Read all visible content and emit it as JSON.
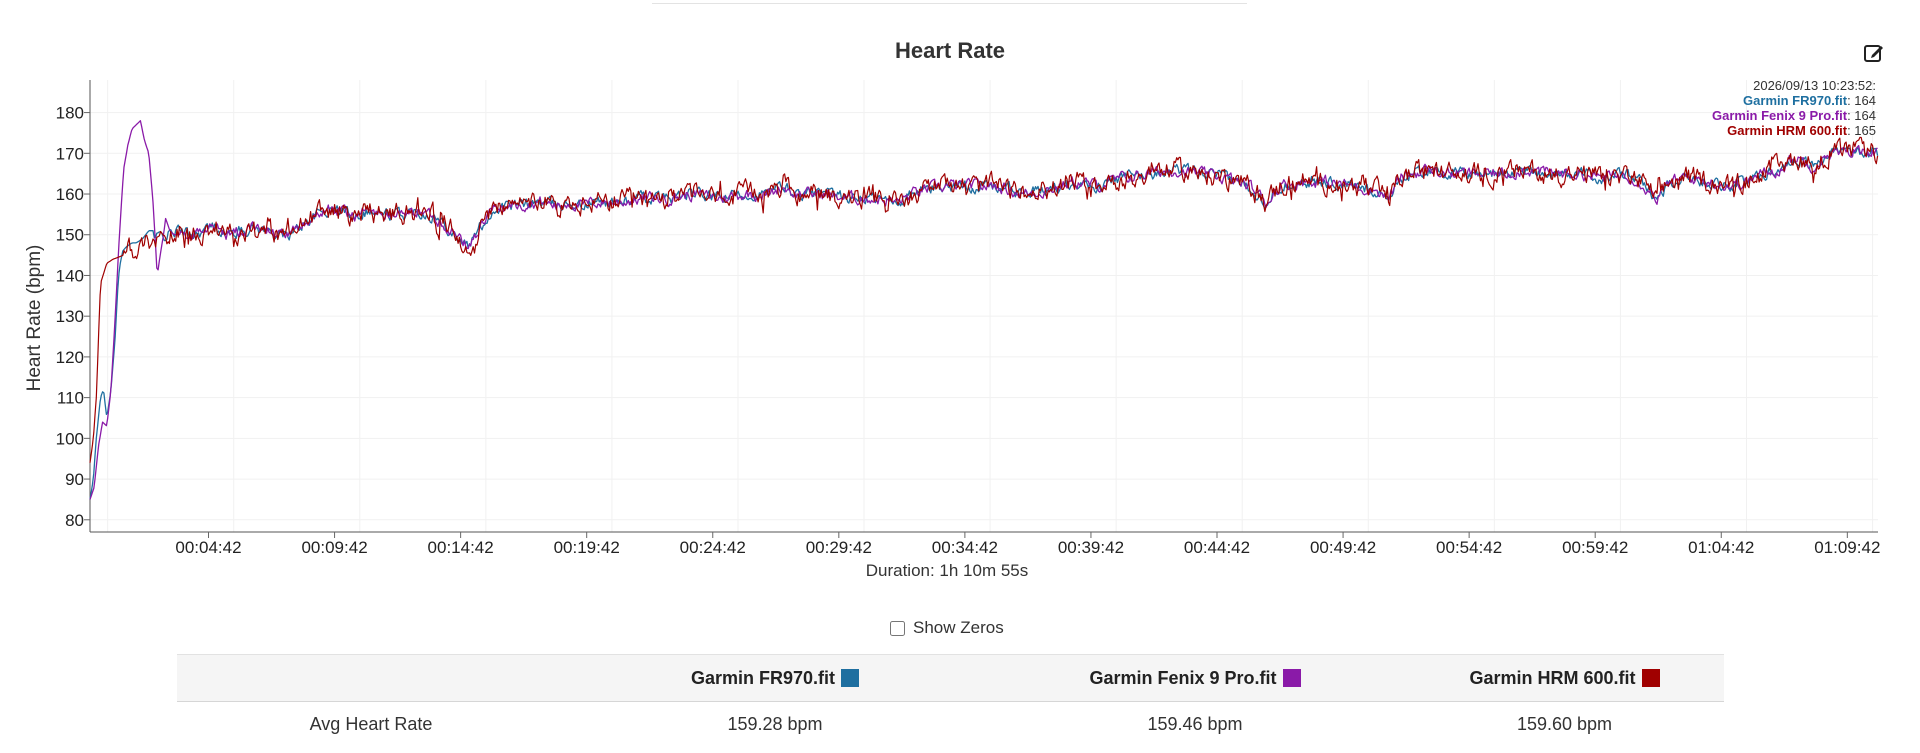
{
  "chart_data": {
    "type": "line",
    "title": "Heart Rate",
    "ylabel": "Heart Rate (bpm)",
    "xlabel": "Duration: 1h 10m 55s",
    "ylim": [
      77,
      188
    ],
    "yticks": [
      80,
      90,
      100,
      110,
      120,
      130,
      140,
      150,
      160,
      170,
      180
    ],
    "xlim": [
      0,
      4255
    ],
    "xticks": [
      {
        "t": 282,
        "label": "00:04:42"
      },
      {
        "t": 582,
        "label": "00:09:42"
      },
      {
        "t": 882,
        "label": "00:14:42"
      },
      {
        "t": 1182,
        "label": "00:19:42"
      },
      {
        "t": 1482,
        "label": "00:24:42"
      },
      {
        "t": 1782,
        "label": "00:29:42"
      },
      {
        "t": 2082,
        "label": "00:34:42"
      },
      {
        "t": 2382,
        "label": "00:39:42"
      },
      {
        "t": 2682,
        "label": "00:44:42"
      },
      {
        "t": 2982,
        "label": "00:49:42"
      },
      {
        "t": 3282,
        "label": "00:54:42"
      },
      {
        "t": 3582,
        "label": "00:59:42"
      },
      {
        "t": 3882,
        "label": "01:04:42"
      },
      {
        "t": 4182,
        "label": "01:09:42"
      }
    ],
    "grid": true,
    "base_trend": {
      "x": [
        0,
        30,
        60,
        90,
        120,
        150,
        180,
        210,
        240,
        270,
        300,
        330,
        360,
        390,
        420,
        450,
        480,
        510,
        540,
        570,
        600,
        630,
        660,
        690,
        720,
        750,
        780,
        810,
        840,
        870,
        900,
        930,
        960,
        990,
        1020,
        1050,
        1080,
        1110,
        1140,
        1170,
        1200,
        1260,
        1320,
        1380,
        1440,
        1500,
        1560,
        1620,
        1650,
        1680,
        1740,
        1800,
        1860,
        1920,
        1980,
        2040,
        2100,
        2160,
        2220,
        2280,
        2340,
        2400,
        2460,
        2520,
        2580,
        2640,
        2700,
        2760,
        2800,
        2830,
        2880,
        2940,
        3000,
        3060,
        3090,
        3120,
        3180,
        3240,
        3300,
        3360,
        3420,
        3480,
        3540,
        3600,
        3660,
        3700,
        3730,
        3760,
        3800,
        3860,
        3900,
        3940,
        3980,
        4020,
        4060,
        4100,
        4140,
        4180,
        4220,
        4255
      ],
      "y": [
        85,
        140,
        145,
        146,
        147,
        149,
        150,
        151,
        150,
        151,
        152,
        150,
        151,
        152,
        151,
        150,
        150,
        153,
        155,
        156,
        156,
        155,
        156,
        155,
        155,
        155,
        156,
        155,
        153,
        150,
        147,
        152,
        156,
        157,
        157,
        158,
        158,
        157,
        158,
        157,
        158,
        158,
        159,
        159,
        160,
        159,
        160,
        160,
        162,
        160,
        160,
        159,
        159,
        158,
        161,
        162,
        162,
        162,
        160,
        161,
        163,
        162,
        164,
        165,
        166,
        165,
        164,
        162,
        158,
        162,
        163,
        163,
        162,
        161,
        159,
        164,
        166,
        165,
        165,
        165,
        166,
        165,
        165,
        164,
        165,
        162,
        159,
        163,
        164,
        163,
        162,
        163,
        165,
        166,
        169,
        167,
        170,
        170,
        171,
        170
      ]
    },
    "series": [
      {
        "name": "Garmin FR970.fit",
        "color": "#1e6fa0",
        "start": {
          "x": [
            0,
            8,
            15,
            25,
            32,
            40,
            50,
            60,
            65,
            70,
            78,
            86,
            100,
            110,
            125,
            140,
            150
          ],
          "y": [
            85,
            90,
            100,
            110,
            112,
            105,
            112,
            125,
            135,
            142,
            146,
            147,
            148,
            148,
            149,
            151,
            151
          ]
        }
      },
      {
        "name": "Garmin Fenix 9 Pro.fit",
        "color": "#8a1aa8",
        "start": {
          "x": [
            0,
            10,
            20,
            30,
            40,
            50,
            60,
            70,
            80,
            90,
            100,
            110,
            120,
            130,
            140,
            150,
            160,
            170,
            175,
            180,
            190,
            200,
            215
          ],
          "y": [
            85,
            88,
            98,
            104,
            103,
            112,
            130,
            150,
            166,
            172,
            176,
            177,
            178,
            173,
            170,
            158,
            140,
            147,
            150,
            154,
            151,
            150,
            150
          ]
        }
      },
      {
        "name": "Garmin HRM 600.fit",
        "color": "#a00000",
        "start": {
          "x": [
            0,
            8,
            15,
            25,
            40,
            55,
            80
          ],
          "y": [
            94,
            100,
            110,
            138,
            143,
            144,
            145
          ]
        }
      }
    ],
    "tooltip": {
      "time": "2026/09/13 10:23:52:",
      "entries": [
        {
          "name": "Garmin FR970.fit",
          "value": ": 164",
          "color": "#1e6fa0"
        },
        {
          "name": "Garmin Fenix 9 Pro.fit",
          "value": ": 164",
          "color": "#8a1aa8"
        },
        {
          "name": "Garmin HRM 600.fit",
          "value": ": 165",
          "color": "#a00000"
        }
      ]
    }
  },
  "controls": {
    "show_zeros_label": "Show Zeros",
    "show_zeros_checked": false,
    "edit_icon": "edit-icon"
  },
  "stats_table": {
    "headers": [
      {
        "name": "Garmin FR970.fit",
        "color": "#1e6fa0"
      },
      {
        "name": "Garmin Fenix 9 Pro.fit",
        "color": "#8a1aa8"
      },
      {
        "name": "Garmin HRM 600.fit",
        "color": "#a00000"
      }
    ],
    "rows": [
      {
        "label": "Avg Heart Rate",
        "values": [
          "159.28 bpm",
          "159.46 bpm",
          "159.60 bpm"
        ]
      }
    ]
  }
}
